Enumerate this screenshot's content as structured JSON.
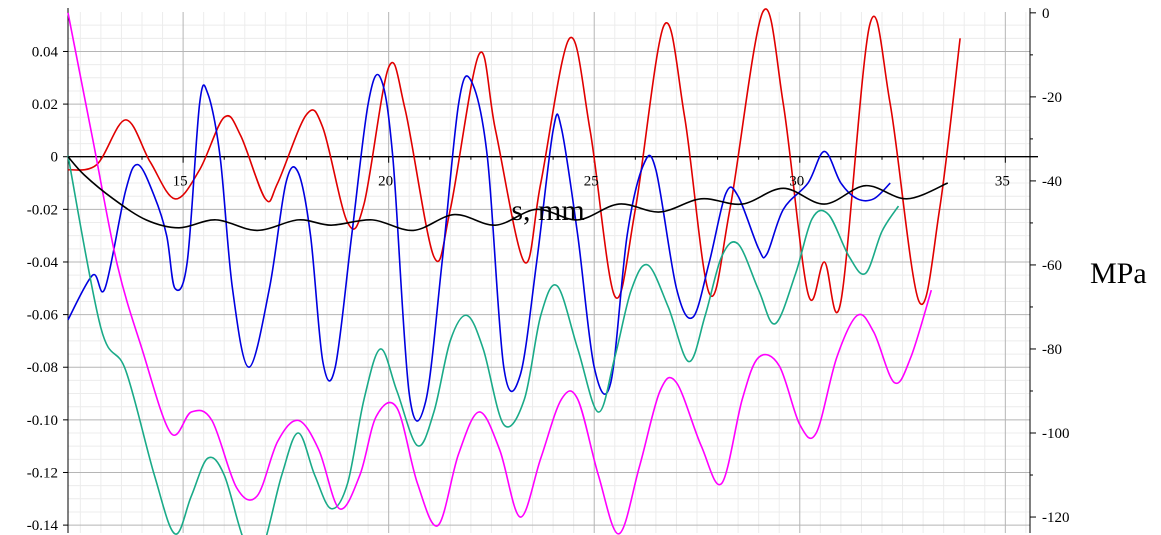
{
  "chart_data": {
    "type": "line",
    "xlabel": "s, mm",
    "ylabel_right": "MPa",
    "xlim": [
      12.2,
      35.6
    ],
    "ylim_left": [
      -0.143,
      0.055
    ],
    "ylim_right": [
      -123.8,
      0.2
    ],
    "x_ticks": [
      15,
      20,
      25,
      30,
      35
    ],
    "x_tick_labels": [
      "15",
      "20",
      "25",
      "30",
      "35"
    ],
    "y_left_ticks": [
      0.04,
      0.02,
      0,
      -0.02,
      -0.04,
      -0.06,
      -0.08,
      -0.1,
      -0.12,
      -0.14
    ],
    "y_left_tick_labels": [
      "0.04",
      "0.02",
      "0",
      "-0.02",
      "-0.04",
      "-0.06",
      "-0.08",
      "-0.10",
      "-0.12",
      "-0.14"
    ],
    "y_right_ticks": [
      0,
      -20,
      -40,
      -60,
      -80,
      -100,
      -120
    ],
    "y_right_tick_labels": [
      "0",
      "-20",
      "-40",
      "-60",
      "-80",
      "-100",
      "-120"
    ],
    "grid": true,
    "series": [
      {
        "color": "#e00000",
        "axis": "left",
        "values": [
          [
            12.2,
            -0.005
          ],
          [
            12.9,
            -0.003
          ],
          [
            13.6,
            0.014
          ],
          [
            14.2,
            -0.002
          ],
          [
            14.8,
            -0.016
          ],
          [
            15.4,
            -0.005
          ],
          [
            16.0,
            0.015
          ],
          [
            16.4,
            0.008
          ],
          [
            17.0,
            -0.016
          ],
          [
            17.3,
            -0.01
          ],
          [
            18.0,
            0.016
          ],
          [
            18.4,
            0.011
          ],
          [
            19.0,
            -0.025
          ],
          [
            19.4,
            -0.018
          ],
          [
            20.0,
            0.034
          ],
          [
            20.4,
            0.018
          ],
          [
            21.1,
            -0.038
          ],
          [
            21.5,
            -0.02
          ],
          [
            22.2,
            0.039
          ],
          [
            22.6,
            0.01
          ],
          [
            23.3,
            -0.04
          ],
          [
            23.7,
            -0.01
          ],
          [
            24.4,
            0.045
          ],
          [
            24.9,
            0.01
          ],
          [
            25.5,
            -0.053
          ],
          [
            26.0,
            -0.02
          ],
          [
            26.7,
            0.05
          ],
          [
            27.2,
            0.015
          ],
          [
            27.8,
            -0.052
          ],
          [
            28.3,
            -0.02
          ],
          [
            29.1,
            0.055
          ],
          [
            29.6,
            0.02
          ],
          [
            30.2,
            -0.052
          ],
          [
            30.6,
            -0.04
          ],
          [
            31.0,
            -0.055
          ],
          [
            31.7,
            0.05
          ],
          [
            32.2,
            0.02
          ],
          [
            32.9,
            -0.055
          ],
          [
            33.4,
            -0.02
          ],
          [
            33.9,
            0.045
          ]
        ]
      },
      {
        "color": "#0000e0",
        "axis": "left",
        "values": [
          [
            12.2,
            -0.062
          ],
          [
            12.8,
            -0.045
          ],
          [
            13.1,
            -0.05
          ],
          [
            13.6,
            -0.013
          ],
          [
            13.9,
            -0.003
          ],
          [
            14.3,
            -0.015
          ],
          [
            14.6,
            -0.03
          ],
          [
            14.8,
            -0.05
          ],
          [
            15.1,
            -0.04
          ],
          [
            15.4,
            0.02
          ],
          [
            15.6,
            0.024
          ],
          [
            15.9,
            0.0
          ],
          [
            16.2,
            -0.05
          ],
          [
            16.6,
            -0.08
          ],
          [
            17.1,
            -0.05
          ],
          [
            17.5,
            -0.01
          ],
          [
            17.8,
            -0.006
          ],
          [
            18.1,
            -0.03
          ],
          [
            18.4,
            -0.078
          ],
          [
            18.7,
            -0.08
          ],
          [
            19.1,
            -0.03
          ],
          [
            19.5,
            0.02
          ],
          [
            19.8,
            0.03
          ],
          [
            20.1,
            0.0
          ],
          [
            20.5,
            -0.09
          ],
          [
            20.9,
            -0.093
          ],
          [
            21.3,
            -0.04
          ],
          [
            21.7,
            0.02
          ],
          [
            22.0,
            0.029
          ],
          [
            22.4,
            0.0
          ],
          [
            22.8,
            -0.08
          ],
          [
            23.2,
            -0.083
          ],
          [
            23.6,
            -0.04
          ],
          [
            24.0,
            0.01
          ],
          [
            24.2,
            0.011
          ],
          [
            24.6,
            -0.03
          ],
          [
            25.0,
            -0.08
          ],
          [
            25.4,
            -0.086
          ],
          [
            25.8,
            -0.03
          ],
          [
            26.2,
            -0.003
          ],
          [
            26.5,
            -0.005
          ],
          [
            27.0,
            -0.05
          ],
          [
            27.4,
            -0.061
          ],
          [
            27.8,
            -0.04
          ],
          [
            28.2,
            -0.014
          ],
          [
            28.5,
            -0.015
          ],
          [
            29.0,
            -0.035
          ],
          [
            29.2,
            -0.037
          ],
          [
            29.6,
            -0.02
          ],
          [
            30.2,
            -0.01
          ],
          [
            30.6,
            0.002
          ],
          [
            31.0,
            -0.01
          ],
          [
            31.4,
            -0.016
          ],
          [
            31.8,
            -0.016
          ],
          [
            32.2,
            -0.01
          ]
        ]
      },
      {
        "color": "#1aaa88",
        "axis": "right",
        "values": [
          [
            12.2,
            -34
          ],
          [
            13.0,
            -75
          ],
          [
            13.6,
            -85
          ],
          [
            14.3,
            -110
          ],
          [
            14.8,
            -124
          ],
          [
            15.2,
            -115
          ],
          [
            15.6,
            -106
          ],
          [
            16.0,
            -110
          ],
          [
            16.5,
            -126
          ],
          [
            16.9,
            -128
          ],
          [
            17.4,
            -110
          ],
          [
            17.8,
            -100
          ],
          [
            18.2,
            -110
          ],
          [
            18.6,
            -118
          ],
          [
            19.0,
            -112
          ],
          [
            19.4,
            -92
          ],
          [
            19.8,
            -80
          ],
          [
            20.2,
            -90
          ],
          [
            20.7,
            -103
          ],
          [
            21.1,
            -95
          ],
          [
            21.5,
            -78
          ],
          [
            21.9,
            -72
          ],
          [
            22.3,
            -80
          ],
          [
            22.8,
            -98
          ],
          [
            23.3,
            -92
          ],
          [
            23.7,
            -72
          ],
          [
            24.1,
            -65
          ],
          [
            24.6,
            -80
          ],
          [
            25.1,
            -95
          ],
          [
            25.5,
            -82
          ],
          [
            25.9,
            -66
          ],
          [
            26.3,
            -60
          ],
          [
            26.8,
            -70
          ],
          [
            27.3,
            -83
          ],
          [
            27.7,
            -72
          ],
          [
            28.1,
            -58
          ],
          [
            28.5,
            -55
          ],
          [
            29.0,
            -66
          ],
          [
            29.4,
            -74
          ],
          [
            29.9,
            -62
          ],
          [
            30.3,
            -49
          ],
          [
            30.7,
            -48
          ],
          [
            31.2,
            -58
          ],
          [
            31.6,
            -62
          ],
          [
            32.0,
            -52
          ],
          [
            32.4,
            -46
          ]
        ]
      },
      {
        "color": "#ff00ff",
        "axis": "right",
        "values": [
          [
            12.2,
            0
          ],
          [
            12.8,
            -30
          ],
          [
            13.4,
            -60
          ],
          [
            14.0,
            -80
          ],
          [
            14.7,
            -100
          ],
          [
            15.2,
            -95
          ],
          [
            15.7,
            -97
          ],
          [
            16.3,
            -113
          ],
          [
            16.8,
            -115
          ],
          [
            17.3,
            -102
          ],
          [
            17.8,
            -97
          ],
          [
            18.3,
            -104
          ],
          [
            18.8,
            -118
          ],
          [
            19.3,
            -110
          ],
          [
            19.7,
            -96
          ],
          [
            20.2,
            -94
          ],
          [
            20.7,
            -112
          ],
          [
            21.2,
            -122
          ],
          [
            21.7,
            -105
          ],
          [
            22.2,
            -95
          ],
          [
            22.7,
            -104
          ],
          [
            23.2,
            -120
          ],
          [
            23.7,
            -106
          ],
          [
            24.2,
            -92
          ],
          [
            24.6,
            -92
          ],
          [
            25.1,
            -110
          ],
          [
            25.6,
            -124
          ],
          [
            26.1,
            -108
          ],
          [
            26.6,
            -90
          ],
          [
            27.0,
            -88
          ],
          [
            27.6,
            -103
          ],
          [
            28.1,
            -112
          ],
          [
            28.6,
            -92
          ],
          [
            29.0,
            -82
          ],
          [
            29.5,
            -84
          ],
          [
            30.0,
            -98
          ],
          [
            30.4,
            -100
          ],
          [
            30.9,
            -82
          ],
          [
            31.4,
            -72
          ],
          [
            31.8,
            -76
          ],
          [
            32.3,
            -88
          ],
          [
            32.7,
            -82
          ],
          [
            33.2,
            -66
          ]
        ]
      },
      {
        "color": "#000000",
        "axis": "left",
        "values": [
          [
            12.2,
            0.0
          ],
          [
            12.6,
            -0.007
          ],
          [
            13.3,
            -0.016
          ],
          [
            14.1,
            -0.024
          ],
          [
            14.9,
            -0.027
          ],
          [
            15.8,
            -0.024
          ],
          [
            16.8,
            -0.028
          ],
          [
            17.8,
            -0.024
          ],
          [
            18.6,
            -0.026
          ],
          [
            19.6,
            -0.024
          ],
          [
            20.6,
            -0.028
          ],
          [
            21.6,
            -0.022
          ],
          [
            22.6,
            -0.026
          ],
          [
            23.6,
            -0.02
          ],
          [
            24.6,
            -0.024
          ],
          [
            25.6,
            -0.018
          ],
          [
            26.6,
            -0.021
          ],
          [
            27.6,
            -0.016
          ],
          [
            28.6,
            -0.018
          ],
          [
            29.6,
            -0.012
          ],
          [
            30.6,
            -0.018
          ],
          [
            31.6,
            -0.011
          ],
          [
            32.6,
            -0.016
          ],
          [
            33.6,
            -0.01
          ]
        ]
      }
    ]
  }
}
